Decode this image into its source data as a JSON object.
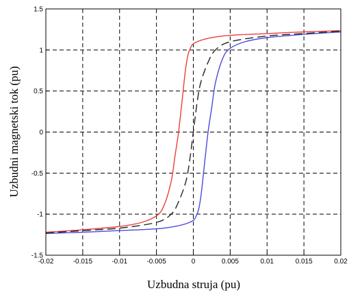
{
  "chart_data": {
    "type": "line",
    "title": "",
    "xlabel": "Uzbudna struja (pu)",
    "ylabel": "Uzbudni magnetski tok (pu)",
    "xlim": [
      -0.02,
      0.02
    ],
    "ylim": [
      -1.5,
      1.5
    ],
    "grid": true,
    "legend": "none",
    "x_ticks": [
      -0.02,
      -0.015,
      -0.01,
      -0.005,
      0,
      0.005,
      0.01,
      0.015,
      0.02
    ],
    "x_tick_labels": [
      "-0.02",
      "-0.015",
      "-0.01",
      "-0.005",
      "0",
      "0.005",
      "0.01",
      "0.015",
      "0.02"
    ],
    "y_ticks": [
      -1.5,
      -1,
      -0.5,
      0,
      0.5,
      1,
      1.5
    ],
    "y_tick_labels": [
      "-1.5",
      "-1",
      "-0.5",
      "0",
      "0.5",
      "1",
      "1.5"
    ],
    "series": [
      {
        "color": "#e8403c",
        "dash": "solid",
        "points": [
          [
            -0.02,
            -1.22
          ],
          [
            -0.015,
            -1.19
          ],
          [
            -0.01,
            -1.15
          ],
          [
            -0.007,
            -1.1
          ],
          [
            -0.005,
            -1.02
          ],
          [
            -0.004,
            -0.9
          ],
          [
            -0.003,
            -0.6
          ],
          [
            -0.0025,
            -0.3
          ],
          [
            -0.002,
            0.0
          ],
          [
            -0.0015,
            0.4
          ],
          [
            -0.001,
            0.8
          ],
          [
            -0.0005,
            1.0
          ],
          [
            0.0005,
            1.1
          ],
          [
            0.004,
            1.17
          ],
          [
            0.01,
            1.2
          ],
          [
            0.015,
            1.22
          ],
          [
            0.02,
            1.235
          ]
        ]
      },
      {
        "color": "#4a4adc",
        "dash": "solid",
        "points": [
          [
            -0.02,
            -1.235
          ],
          [
            -0.015,
            -1.22
          ],
          [
            -0.01,
            -1.2
          ],
          [
            -0.004,
            -1.17
          ],
          [
            -0.0005,
            -1.1
          ],
          [
            0.0005,
            -1.0
          ],
          [
            0.001,
            -0.8
          ],
          [
            0.0015,
            -0.4
          ],
          [
            0.002,
            0.0
          ],
          [
            0.0025,
            0.3
          ],
          [
            0.003,
            0.6
          ],
          [
            0.004,
            0.9
          ],
          [
            0.005,
            1.02
          ],
          [
            0.007,
            1.1
          ],
          [
            0.01,
            1.15
          ],
          [
            0.015,
            1.19
          ],
          [
            0.02,
            1.22
          ]
        ]
      },
      {
        "color": "#222222",
        "dash": "dashed",
        "points": [
          [
            -0.02,
            -1.23
          ],
          [
            -0.015,
            -1.2
          ],
          [
            -0.01,
            -1.17
          ],
          [
            -0.005,
            -1.1
          ],
          [
            -0.003,
            -1.0
          ],
          [
            -0.002,
            -0.85
          ],
          [
            -0.001,
            -0.6
          ],
          [
            -0.0005,
            -0.35
          ],
          [
            0.0,
            0.0
          ],
          [
            0.0005,
            0.35
          ],
          [
            0.001,
            0.6
          ],
          [
            0.002,
            0.85
          ],
          [
            0.003,
            1.0
          ],
          [
            0.005,
            1.1
          ],
          [
            0.01,
            1.17
          ],
          [
            0.015,
            1.2
          ],
          [
            0.02,
            1.23
          ]
        ]
      }
    ]
  }
}
